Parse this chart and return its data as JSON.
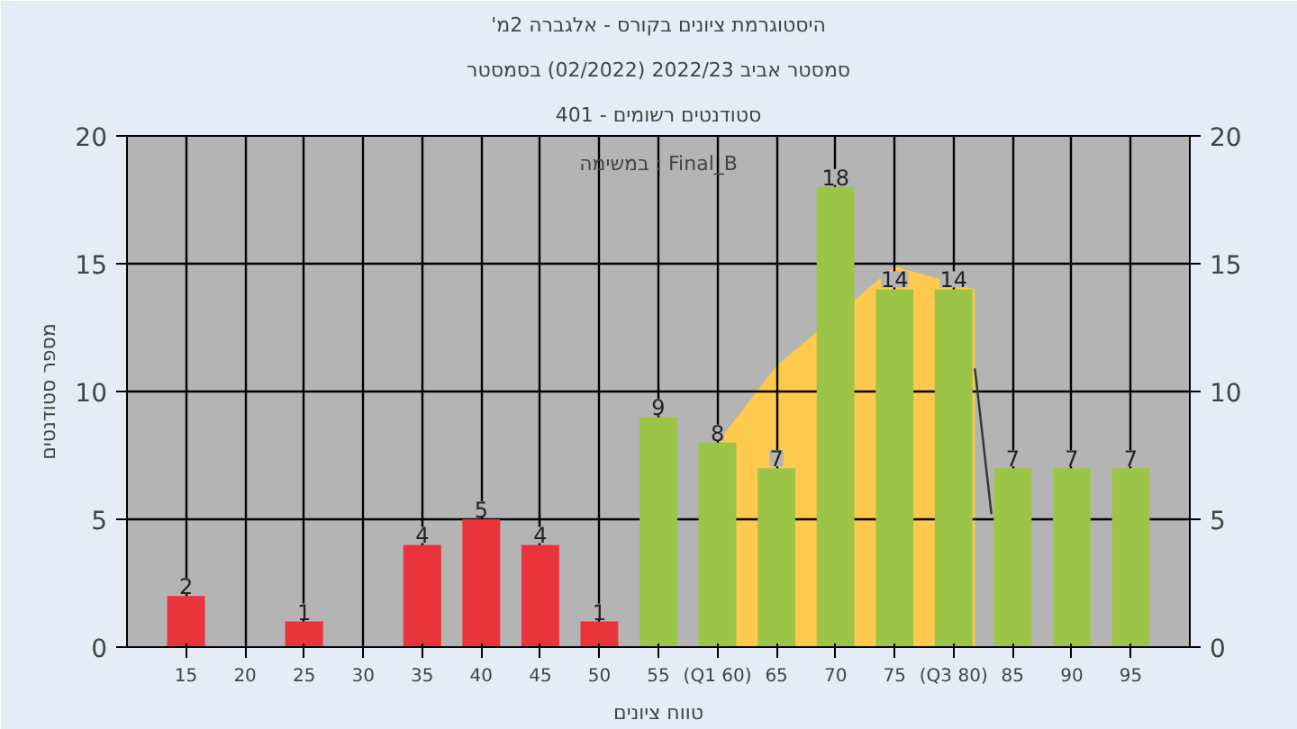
{
  "chart_data": {
    "type": "bar",
    "title": "'היסטוגרמת ציונים בקורס - אלגברה 2מ",
    "subtitle": [
      "סמסטר אביב 2022/23 (02/2022) בסמסטר",
      "סטודנטים רשומים - 401"
    ],
    "xlabel": "טווח ציונים",
    "ylabel": "מספר סטודנטים",
    "annotations": [
      "במשימה : Final_B"
    ],
    "x": [
      15,
      20,
      25,
      30,
      35,
      40,
      45,
      50,
      55,
      60,
      65,
      70,
      75,
      80,
      85,
      90,
      95
    ],
    "xlim": [
      10,
      100
    ],
    "xticks": [
      15,
      20,
      25,
      30,
      35,
      40,
      45,
      50,
      55,
      {
        "value": 60,
        "label": "(Q1 60)"
      },
      65,
      70,
      75,
      {
        "value": 80,
        "label": "(Q3 80)"
      },
      85,
      90,
      95
    ],
    "ylim": [
      0,
      20
    ],
    "yticks": [
      0,
      5,
      10,
      15,
      20
    ],
    "y2lim": [
      0,
      20
    ],
    "y2ticks": [
      0,
      5,
      10,
      15,
      20
    ],
    "series": [
      {
        "type": "area",
        "color": "#ffc94d",
        "x": [
          60,
          65,
          75,
          81.8
        ],
        "values": [
          8,
          11,
          14.9,
          14
        ]
      },
      {
        "type": "line",
        "color": "#333333",
        "x": [
          81.8,
          83.2
        ],
        "values": [
          10.9,
          5.2
        ]
      },
      {
        "values": [
          2,
          0,
          1,
          0,
          4,
          5,
          4,
          1,
          9,
          8,
          7,
          18,
          14,
          14,
          7,
          7,
          7
        ],
        "colors": [
          "#e8343a",
          "#e8343a",
          "#e8343a",
          "#e8343a",
          "#e8343a",
          "#e8343a",
          "#e8343a",
          "#e8343a",
          "#9cc548",
          "#9cc548",
          "#9cc548",
          "#9cc548",
          "#9cc548",
          "#9cc548",
          "#9cc548",
          "#9cc548",
          "#9cc548"
        ],
        "value_labels": [
          "2",
          null,
          "1",
          null,
          "4",
          "5",
          "4",
          "1",
          "9",
          "8",
          "7",
          "18",
          "14",
          "14",
          "7",
          "7",
          "7"
        ]
      }
    ],
    "grid": true
  }
}
